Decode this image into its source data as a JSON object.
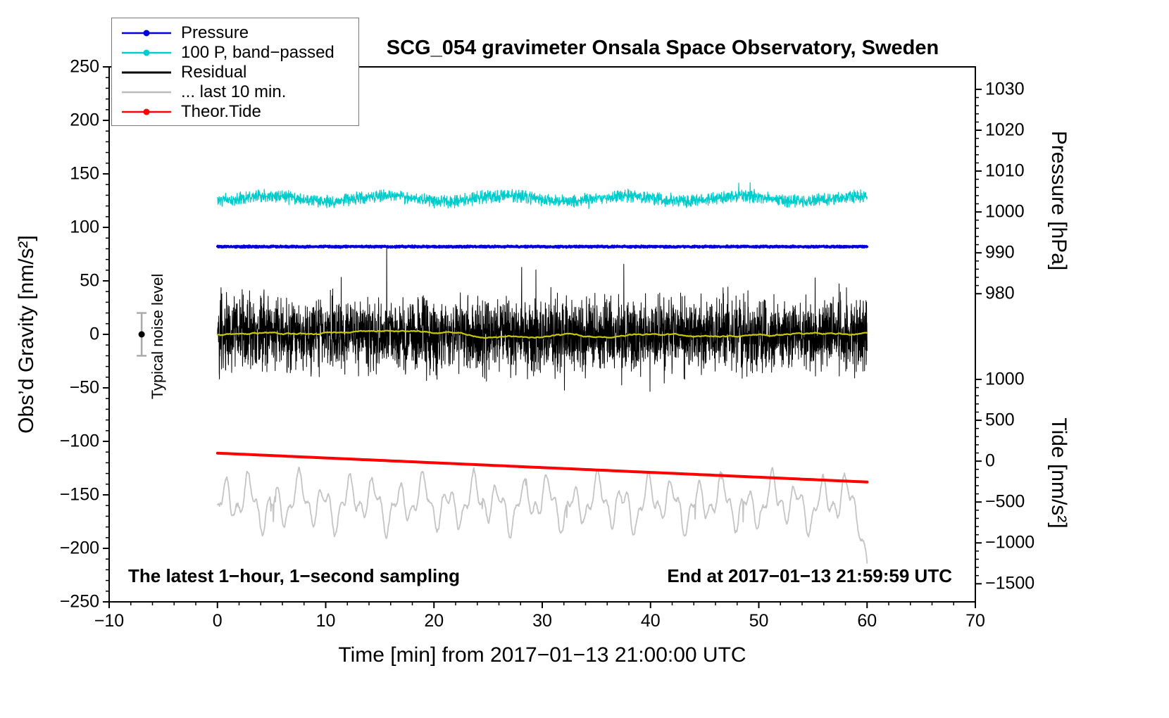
{
  "chart_data": {
    "type": "line",
    "title": "SCG_054 gravimeter Onsala Space Observatory, Sweden",
    "xlabel": "Time [min] from 2017−01−13 21:00:00 UTC",
    "ylabel_left": "Obs’d Gravity [nm/s²]",
    "xlim": [
      -10,
      70
    ],
    "ylim_left": [
      -250,
      250
    ],
    "xticks": [
      -10,
      0,
      10,
      20,
      30,
      40,
      50,
      60,
      70
    ],
    "yticks_left": [
      -250,
      -200,
      -150,
      -100,
      -50,
      0,
      50,
      100,
      150,
      200,
      250
    ],
    "grid": false,
    "legend_position": "top-left",
    "right_axes": {
      "pressure": {
        "label": "Pressure [hPa]",
        "ticks": [
          1030,
          1020,
          1010,
          1000,
          990,
          980
        ],
        "gravity_at_980": 38,
        "gravity_per_hpa": 3.82
      },
      "tide": {
        "label": "Tide [nm/s²]",
        "ticks": [
          1000,
          500,
          0,
          -500,
          -1000,
          -1500
        ],
        "gravity_at_0": -118.5,
        "gravity_per_unit": 0.0764
      }
    },
    "legend": [
      {
        "label": "Pressure",
        "color": "#0000dd",
        "dot": true
      },
      {
        "label": "100 P, band−passed",
        "color": "#00cccc",
        "dot": true
      },
      {
        "label": "Residual",
        "color": "#000000",
        "dot": false
      },
      {
        "label": "... last 10 min.",
        "color": "#bbbbbb",
        "dot": false
      },
      {
        "label": "Theor.Tide",
        "color": "#ff0000",
        "dot": true
      }
    ],
    "annotations": {
      "left": "The latest 1−hour, 1−second sampling",
      "right": "End at 2017−01−13 21:59:59 UTC"
    },
    "noise_marker": {
      "label": "Typical noise level",
      "x": -7,
      "center": 0,
      "error": 20
    },
    "seed": 20170113,
    "series": [
      {
        "id": "last10min",
        "legend": "... last 10 min.",
        "kind": "wave",
        "color": "#c4c4c4",
        "width": 1.8,
        "baseline": -158,
        "amps": [
          16,
          9,
          7
        ],
        "periods": [
          2.3,
          0.95,
          5.5
        ],
        "noise": 10,
        "dip_p": 0.008,
        "dip_amp": 22,
        "points": 1300,
        "x_range": [
          0,
          60
        ],
        "end_drop": {
          "start": 59.35,
          "rate": 85
        }
      },
      {
        "id": "theor_tide",
        "legend": "Theor.Tide",
        "kind": "trend",
        "color": "#ff0000",
        "width": 4,
        "start": -111,
        "end": -138,
        "points": 120,
        "x_range": [
          0,
          60
        ]
      },
      {
        "id": "bandpassed",
        "legend": "100 P, band−passed",
        "kind": "noise",
        "color": "#00cccc",
        "width": 1.2,
        "baseline": 127,
        "scale": 7,
        "terms": 2,
        "mod_amp": 2.5,
        "mod_period": 11,
        "spike_p": 0.002,
        "spike_mult": 2.2,
        "points": 2400,
        "x_range": [
          0,
          60
        ]
      },
      {
        "id": "residual",
        "legend": "Residual",
        "kind": "noise",
        "color": "#000000",
        "width": 1,
        "baseline": 0,
        "scale": 28,
        "terms": 4,
        "mod_amp": 0,
        "mod_period": 37,
        "spike_p": 0.015,
        "spike_mult": 1.9,
        "points": 3600,
        "x_range": [
          0,
          60
        ]
      },
      {
        "id": "residual_smoothed",
        "legend": null,
        "kind": "walk",
        "color": "#c8c800",
        "width": 2.2,
        "baseline": 0,
        "step": 0.9,
        "clamp": 3.5,
        "points": 720,
        "x_range": [
          0,
          60
        ]
      },
      {
        "id": "pressure",
        "legend": "Pressure",
        "kind": "noise",
        "color": "#0000dd",
        "width": 3.5,
        "baseline": 82,
        "scale": 0.9,
        "terms": 2,
        "mod_amp": 0,
        "mod_period": 10,
        "spike_p": 0,
        "spike_mult": 1,
        "points": 1800,
        "x_range": [
          0,
          60
        ]
      }
    ],
    "key_readings": {
      "pressure_level_hpa": 991.5,
      "bandpassed_level_gravity": 127,
      "residual_mean_gravity": 0,
      "tide_start_gravity": -111,
      "tide_end_gravity": -138,
      "last10min_mean_gravity": -158
    }
  }
}
